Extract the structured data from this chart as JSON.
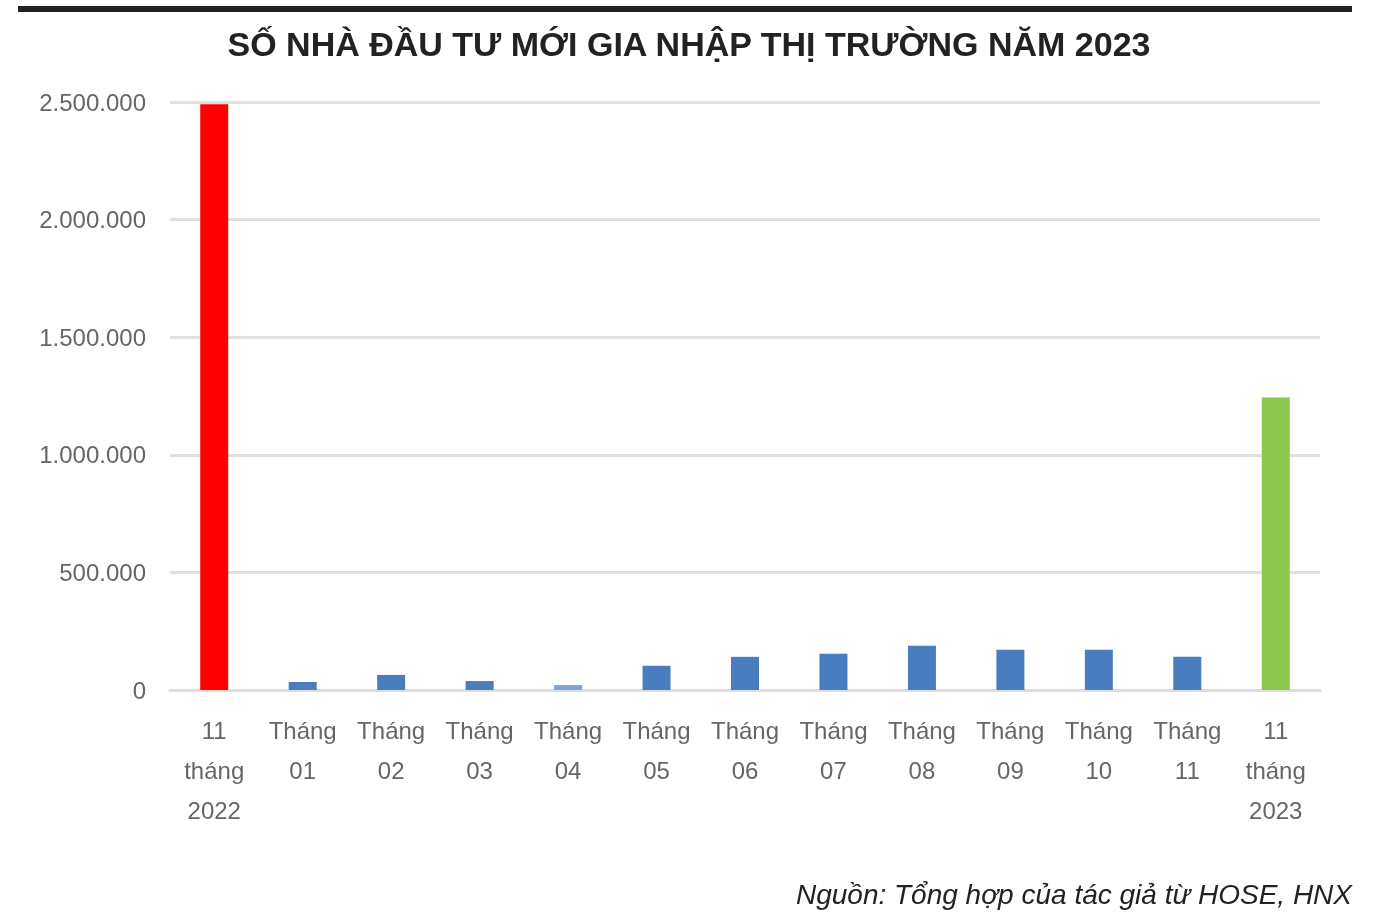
{
  "chart_data": {
    "type": "bar",
    "title": "SỐ NHÀ ĐẦU TƯ MỚI GIA NHẬP THỊ TRƯỜNG NĂM 2023",
    "categories": [
      "11\ntháng\n2022",
      "Tháng\n01",
      "Tháng\n02",
      "Tháng\n03",
      "Tháng\n04",
      "Tháng\n05",
      "Tháng\n06",
      "Tháng\n07",
      "Tháng\n08",
      "Tháng\n09",
      "Tháng\n10",
      "Tháng\n11",
      "11\ntháng\n2023"
    ],
    "values": [
      2490000,
      34000,
      64000,
      38000,
      21000,
      103000,
      141000,
      154000,
      188000,
      171000,
      171000,
      141000,
      1244000
    ],
    "colors": [
      "#ff0000",
      "#4a7cc0",
      "#4a7cc0",
      "#4a7cc0",
      "#7ea3d4",
      "#4a7cc0",
      "#4a7cc0",
      "#4a7cc0",
      "#4a7cc0",
      "#4a7cc0",
      "#4a7cc0",
      "#4a7cc0",
      "#8cc84b"
    ],
    "ylim": [
      0,
      2500000
    ],
    "yticks": [
      {
        "value": 0,
        "label": "0"
      },
      {
        "value": 500000,
        "label": "500.000"
      },
      {
        "value": 1000000,
        "label": "1.000.000"
      },
      {
        "value": 1500000,
        "label": "1.500.000"
      },
      {
        "value": 2000000,
        "label": "2.000.000"
      },
      {
        "value": 2500000,
        "label": "2.500.000"
      }
    ],
    "grid": "y",
    "annotations": [
      "Nguồn: Tổng hợp của tác giả từ HOSE, HNX"
    ]
  }
}
